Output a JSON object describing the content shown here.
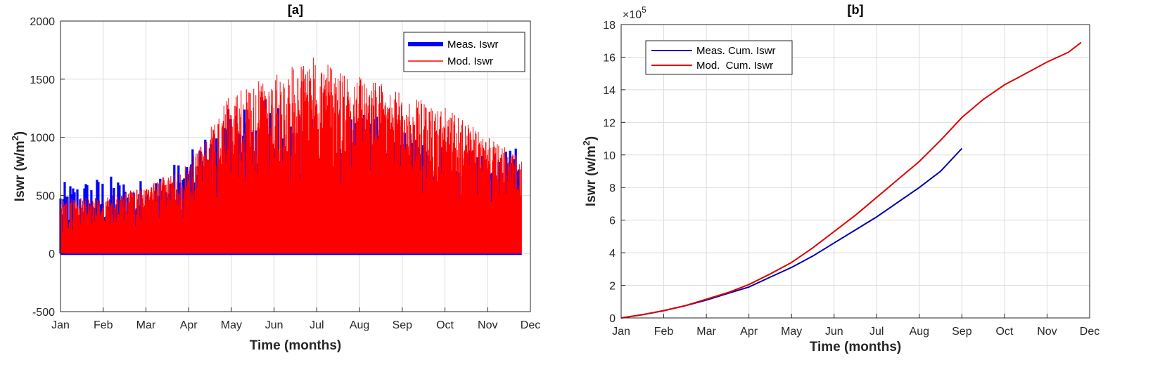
{
  "chart_data": [
    {
      "id": "a",
      "type": "line",
      "title": "[a]",
      "xlabel": "Time (months)",
      "ylabel_main": "Iswr (w/m",
      "ylabel_sup": "2",
      "ylabel_tail": ")",
      "ylim": [
        -500,
        2000
      ],
      "yticks": [
        -500,
        0,
        500,
        1000,
        1500,
        2000
      ],
      "ytick_labels": [
        "-500",
        "0",
        "500",
        "1000",
        "1500",
        "2000"
      ],
      "categories": [
        "Jan",
        "Feb",
        "Mar",
        "Apr",
        "May",
        "Jun",
        "Jul",
        "Aug",
        "Sep",
        "Oct",
        "Nov",
        "Dec"
      ],
      "grid": true,
      "legend_position": "top-right",
      "series": [
        {
          "name": "Meas. Iswr",
          "color": "#0000ff",
          "monthly_peak_envelope": [
            610,
            680,
            640,
            860,
            1280,
            1370,
            1150,
            1220,
            1130,
            960,
            840,
            950
          ],
          "end_month": 10.8
        },
        {
          "name": "Mod. Iswr",
          "color": "#ff0000",
          "monthly_peak_envelope": [
            480,
            480,
            580,
            780,
            1380,
            1540,
            1700,
            1540,
            1380,
            1260,
            1000,
            790
          ],
          "end_month": 10.8
        }
      ]
    },
    {
      "id": "b",
      "type": "line",
      "title": "[b]",
      "xlabel": "Time (months)",
      "ylabel_main": "Iswr (w/m",
      "ylabel_sup": "2",
      "ylabel_tail": ")",
      "exponent_base": "×10",
      "exponent_power": "5",
      "ylim": [
        0,
        18
      ],
      "yticks": [
        0,
        2,
        4,
        6,
        8,
        10,
        12,
        14,
        16,
        18
      ],
      "ytick_labels": [
        "0",
        "2",
        "4",
        "6",
        "8",
        "10",
        "12",
        "14",
        "16",
        "18"
      ],
      "categories": [
        "Jan",
        "Feb",
        "Mar",
        "Apr",
        "May",
        "Jun",
        "Jul",
        "Aug",
        "Sep",
        "Oct",
        "Nov",
        "Dec"
      ],
      "grid": true,
      "legend_position": "top-left",
      "series": [
        {
          "name": "Meas. Cum. Iswr",
          "color": "#0000b0",
          "x": [
            0,
            0.5,
            1,
            1.5,
            2,
            2.5,
            3,
            3.5,
            4,
            4.5,
            5,
            5.5,
            6,
            6.5,
            7,
            7.5,
            8
          ],
          "values": [
            0,
            0.2,
            0.45,
            0.75,
            1.1,
            1.5,
            1.9,
            2.5,
            3.1,
            3.8,
            4.6,
            5.4,
            6.2,
            7.1,
            8.0,
            9.0,
            10.4
          ]
        },
        {
          "name": "Mod.  Cum. Iswr",
          "color": "#e00000",
          "x": [
            0,
            0.5,
            1,
            1.5,
            2,
            2.5,
            3,
            3.5,
            4,
            4.5,
            5,
            5.5,
            6,
            6.5,
            7,
            7.5,
            8,
            8.5,
            9,
            9.5,
            10,
            10.5,
            10.8
          ],
          "values": [
            0,
            0.2,
            0.45,
            0.75,
            1.15,
            1.55,
            2.05,
            2.7,
            3.4,
            4.3,
            5.3,
            6.3,
            7.4,
            8.5,
            9.6,
            10.9,
            12.3,
            13.4,
            14.3,
            15.0,
            15.7,
            16.3,
            16.9
          ]
        }
      ]
    }
  ]
}
